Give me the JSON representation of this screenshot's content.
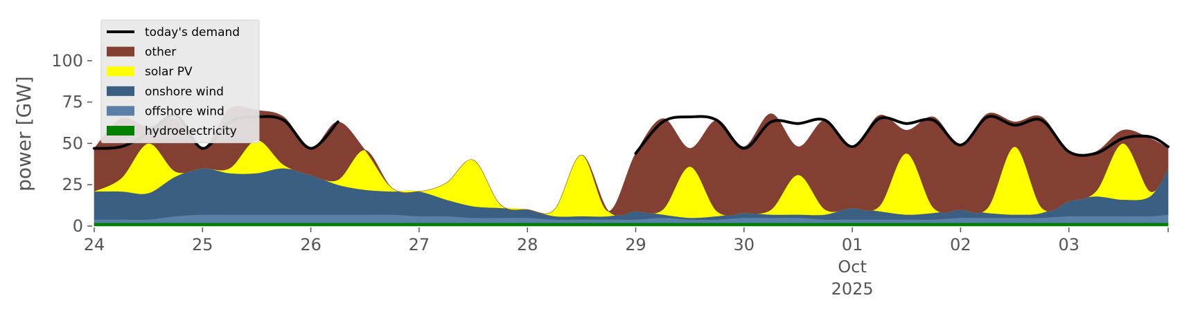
{
  "chart_data": {
    "type": "area",
    "ylabel": "power [GW]",
    "ylim": [
      0,
      120
    ],
    "yticks": [
      0,
      25,
      50,
      75,
      100
    ],
    "xlim": [
      "2025-09-24T00:00",
      "2025-10-03T22:00"
    ],
    "xticks": [
      {
        "date": "2025-09-24",
        "label": "24"
      },
      {
        "date": "2025-09-25",
        "label": "25"
      },
      {
        "date": "2025-09-26",
        "label": "26"
      },
      {
        "date": "2025-09-27",
        "label": "27"
      },
      {
        "date": "2025-09-28",
        "label": "28"
      },
      {
        "date": "2025-09-29",
        "label": "29"
      },
      {
        "date": "2025-09-30",
        "label": "30"
      },
      {
        "date": "2025-10-01",
        "label": "01",
        "sub": [
          "Oct",
          "2025"
        ]
      },
      {
        "date": "2025-10-02",
        "label": "02"
      },
      {
        "date": "2025-10-03",
        "label": "03"
      }
    ],
    "legend_position": "top-left",
    "grid": false,
    "x": [
      "2025-09-24T00:00",
      "2025-09-24T06:00",
      "2025-09-24T12:00",
      "2025-09-24T18:00",
      "2025-09-25T00:00",
      "2025-09-25T06:00",
      "2025-09-25T12:00",
      "2025-09-25T18:00",
      "2025-09-26T00:00",
      "2025-09-26T06:00",
      "2025-09-26T12:00",
      "2025-09-26T18:00",
      "2025-09-27T00:00",
      "2025-09-27T06:00",
      "2025-09-27T12:00",
      "2025-09-27T18:00",
      "2025-09-28T00:00",
      "2025-09-28T06:00",
      "2025-09-28T12:00",
      "2025-09-28T18:00",
      "2025-09-29T00:00",
      "2025-09-29T06:00",
      "2025-09-29T12:00",
      "2025-09-29T18:00",
      "2025-09-30T00:00",
      "2025-09-30T06:00",
      "2025-09-30T12:00",
      "2025-09-30T18:00",
      "2025-10-01T00:00",
      "2025-10-01T06:00",
      "2025-10-01T12:00",
      "2025-10-01T18:00",
      "2025-10-02T00:00",
      "2025-10-02T06:00",
      "2025-10-02T12:00",
      "2025-10-02T18:00",
      "2025-10-03T00:00",
      "2025-10-03T06:00",
      "2025-10-03T12:00",
      "2025-10-03T18:00",
      "2025-10-03T22:00"
    ],
    "series": [
      {
        "name": "hydroelectricity",
        "color": "#008000",
        "values": [
          2,
          2,
          2,
          2,
          2,
          2,
          2,
          2,
          2,
          2,
          2,
          2,
          2,
          2,
          2,
          2,
          2,
          2,
          2,
          2,
          2,
          2,
          2,
          2,
          2,
          2,
          2,
          2,
          2,
          2,
          2,
          2,
          2,
          2,
          2,
          2,
          2,
          2,
          2,
          2,
          2
        ]
      },
      {
        "name": "offshore wind",
        "color": "#5a80a8",
        "values": [
          2,
          2,
          2,
          4,
          5,
          5,
          5,
          5,
          5,
          5,
          5,
          5,
          4,
          4,
          3,
          3,
          3,
          2,
          2,
          2,
          2,
          3,
          2,
          2,
          3,
          3,
          3,
          2,
          2,
          2,
          2,
          2,
          3,
          3,
          3,
          3,
          4,
          4,
          4,
          4,
          5
        ]
      },
      {
        "name": "onshore wind",
        "color": "#3a5f82",
        "values": [
          17,
          17,
          16,
          24,
          28,
          25,
          25,
          28,
          24,
          18,
          15,
          14,
          15,
          10,
          7,
          6,
          5,
          2,
          2,
          2,
          5,
          2,
          1,
          2,
          3,
          2,
          2,
          3,
          7,
          5,
          3,
          4,
          5,
          3,
          2,
          3,
          9,
          12,
          10,
          12,
          28
        ]
      },
      {
        "name": "solar PV",
        "color": "#ffff00",
        "values": [
          0,
          8,
          30,
          3,
          0,
          3,
          20,
          2,
          0,
          3,
          24,
          2,
          0,
          10,
          28,
          2,
          0,
          4,
          37,
          3,
          0,
          3,
          31,
          3,
          0,
          3,
          24,
          3,
          0,
          3,
          37,
          3,
          0,
          3,
          41,
          3,
          0,
          3,
          34,
          3,
          0
        ]
      },
      {
        "name": "other",
        "color": "#833f32",
        "values": [
          26,
          36,
          10,
          32,
          12,
          36,
          18,
          29,
          16,
          35,
          0,
          0,
          0,
          0,
          0,
          0,
          0,
          0,
          0,
          0,
          35,
          55,
          11,
          55,
          40,
          58,
          17,
          54,
          36,
          55,
          14,
          55,
          39,
          57,
          15,
          55,
          30,
          24,
          8,
          32,
          12
        ]
      }
    ],
    "demand": {
      "name": "today's demand",
      "color": "#000000",
      "values": [
        47,
        48,
        56,
        67,
        47,
        63,
        66,
        64,
        47,
        63,
        null,
        null,
        null,
        null,
        null,
        null,
        null,
        null,
        null,
        null,
        44,
        63,
        66,
        64,
        47,
        63,
        62,
        64,
        48,
        65,
        62,
        64,
        49,
        66,
        61,
        64,
        45,
        44,
        53,
        54,
        48
      ]
    }
  }
}
